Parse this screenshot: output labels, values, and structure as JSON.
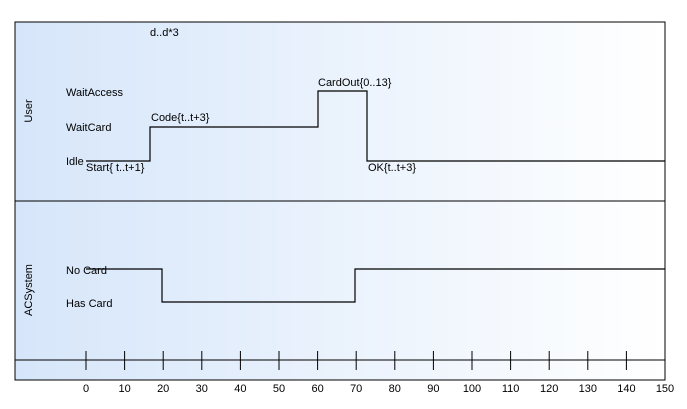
{
  "title": "d..d*3",
  "lifelines": [
    {
      "name": "User",
      "states": [
        "WaitAccess",
        "WaitCard",
        "Idle"
      ],
      "messages": [
        "Start{ t..t+1}",
        "Code{t..t+3}",
        "CardOut{0..13}",
        "OK{t..t+3}"
      ]
    },
    {
      "name": "ACSystem",
      "states": [
        "No Card",
        "Has Card"
      ]
    }
  ],
  "axis": {
    "ticks": [
      0,
      10,
      20,
      30,
      40,
      50,
      60,
      70,
      80,
      90,
      100,
      110,
      120,
      130,
      140,
      150
    ]
  }
}
